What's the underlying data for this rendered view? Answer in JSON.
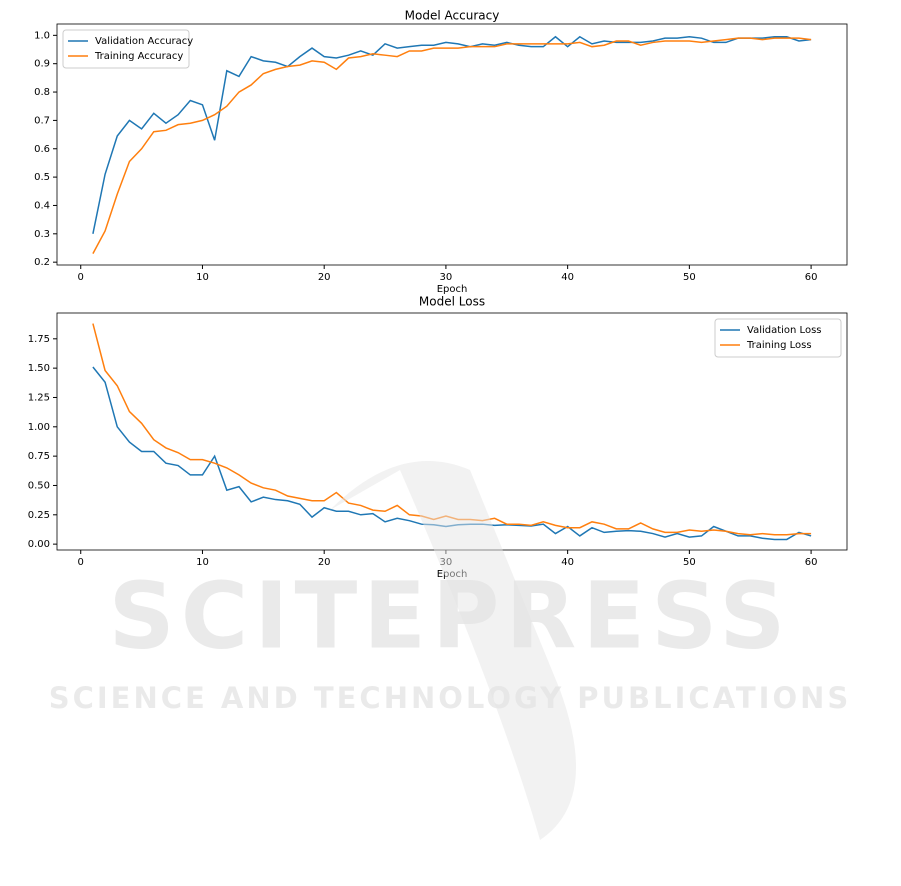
{
  "chart_data": [
    {
      "type": "line",
      "title": "Model Accuracy",
      "x_label": "Epoch",
      "x": [
        1,
        2,
        3,
        4,
        5,
        6,
        7,
        8,
        9,
        10,
        11,
        12,
        13,
        14,
        15,
        16,
        17,
        18,
        19,
        20,
        21,
        22,
        23,
        24,
        25,
        26,
        27,
        28,
        29,
        30,
        31,
        32,
        33,
        34,
        35,
        36,
        37,
        38,
        39,
        40,
        41,
        42,
        43,
        44,
        45,
        46,
        47,
        48,
        49,
        50,
        51,
        52,
        53,
        54,
        55,
        56,
        57,
        58,
        59,
        60
      ],
      "series": [
        {
          "name": "Validation Accuracy",
          "color": "#1f77b4",
          "values": [
            0.3,
            0.51,
            0.645,
            0.7,
            0.67,
            0.725,
            0.69,
            0.72,
            0.77,
            0.755,
            0.63,
            0.875,
            0.855,
            0.925,
            0.91,
            0.905,
            0.89,
            0.925,
            0.955,
            0.925,
            0.92,
            0.93,
            0.945,
            0.93,
            0.97,
            0.955,
            0.96,
            0.965,
            0.965,
            0.975,
            0.97,
            0.96,
            0.97,
            0.965,
            0.975,
            0.965,
            0.96,
            0.96,
            0.995,
            0.96,
            0.995,
            0.97,
            0.98,
            0.975,
            0.975,
            0.975,
            0.98,
            0.99,
            0.99,
            0.995,
            0.99,
            0.975,
            0.975,
            0.99,
            0.99,
            0.99,
            0.995,
            0.995,
            0.98,
            0.985
          ]
        },
        {
          "name": "Training Accuracy",
          "color": "#ff7f0e",
          "values": [
            0.23,
            0.31,
            0.44,
            0.555,
            0.6,
            0.66,
            0.665,
            0.685,
            0.69,
            0.7,
            0.72,
            0.75,
            0.8,
            0.825,
            0.865,
            0.88,
            0.89,
            0.895,
            0.91,
            0.905,
            0.88,
            0.92,
            0.925,
            0.935,
            0.93,
            0.925,
            0.945,
            0.945,
            0.955,
            0.955,
            0.955,
            0.96,
            0.96,
            0.96,
            0.97,
            0.97,
            0.97,
            0.97,
            0.97,
            0.97,
            0.975,
            0.96,
            0.965,
            0.98,
            0.98,
            0.965,
            0.975,
            0.98,
            0.98,
            0.98,
            0.975,
            0.98,
            0.985,
            0.99,
            0.99,
            0.985,
            0.99,
            0.99,
            0.99,
            0.985
          ]
        }
      ],
      "xlim": [
        -1.95,
        62.95
      ],
      "xticks": [
        0,
        10,
        20,
        30,
        40,
        50,
        60
      ],
      "ylim": [
        0.19,
        1.04
      ],
      "yticks": [
        0.2,
        0.3,
        0.4,
        0.5,
        0.6,
        0.7,
        0.8,
        0.9,
        {
          "value": 1,
          "label": "1.0"
        }
      ],
      "grid": false,
      "legend": "upper-left"
    },
    {
      "type": "line",
      "title": "Model Loss",
      "x_label": "Epoch",
      "x": [
        1,
        2,
        3,
        4,
        5,
        6,
        7,
        8,
        9,
        10,
        11,
        12,
        13,
        14,
        15,
        16,
        17,
        18,
        19,
        20,
        21,
        22,
        23,
        24,
        25,
        26,
        27,
        28,
        29,
        30,
        31,
        32,
        33,
        34,
        35,
        36,
        37,
        38,
        39,
        40,
        41,
        42,
        43,
        44,
        45,
        46,
        47,
        48,
        49,
        50,
        51,
        52,
        53,
        54,
        55,
        56,
        57,
        58,
        59,
        60
      ],
      "series": [
        {
          "name": "Validation Loss",
          "color": "#1f77b4",
          "values": [
            1.51,
            1.38,
            1.0,
            0.87,
            0.79,
            0.79,
            0.69,
            0.67,
            0.59,
            0.59,
            0.75,
            0.46,
            0.49,
            0.36,
            0.4,
            0.38,
            0.37,
            0.34,
            0.23,
            0.31,
            0.28,
            0.28,
            0.25,
            0.26,
            0.19,
            0.22,
            0.2,
            0.17,
            0.165,
            0.15,
            0.165,
            0.17,
            0.17,
            0.16,
            0.165,
            0.16,
            0.155,
            0.17,
            0.09,
            0.15,
            0.07,
            0.14,
            0.1,
            0.11,
            0.115,
            0.11,
            0.09,
            0.06,
            0.09,
            0.06,
            0.07,
            0.15,
            0.11,
            0.07,
            0.07,
            0.05,
            0.04,
            0.04,
            0.1,
            0.07
          ]
        },
        {
          "name": "Training Loss",
          "color": "#ff7f0e",
          "values": [
            1.88,
            1.48,
            1.35,
            1.13,
            1.03,
            0.89,
            0.82,
            0.78,
            0.72,
            0.72,
            0.69,
            0.65,
            0.59,
            0.52,
            0.48,
            0.46,
            0.41,
            0.39,
            0.37,
            0.37,
            0.44,
            0.35,
            0.33,
            0.29,
            0.28,
            0.33,
            0.25,
            0.24,
            0.21,
            0.24,
            0.21,
            0.21,
            0.2,
            0.22,
            0.17,
            0.17,
            0.16,
            0.19,
            0.16,
            0.14,
            0.14,
            0.19,
            0.17,
            0.13,
            0.13,
            0.18,
            0.13,
            0.1,
            0.1,
            0.12,
            0.11,
            0.12,
            0.11,
            0.09,
            0.08,
            0.09,
            0.08,
            0.08,
            0.09,
            0.09
          ]
        }
      ],
      "xlim": [
        -1.95,
        62.95
      ],
      "xticks": [
        0,
        10,
        20,
        30,
        40,
        50,
        60
      ],
      "ylim": [
        -0.05,
        1.97
      ],
      "yticks": [
        {
          "value": 0,
          "label": "0.00"
        },
        0.25,
        {
          "value": 0.5,
          "label": "0.50"
        },
        0.75,
        {
          "value": 1,
          "label": "1.00"
        },
        1.25,
        {
          "value": 1.5,
          "label": "1.50"
        },
        1.75
      ],
      "grid": false,
      "legend": "upper-right"
    }
  ],
  "watermark": {
    "title": "SCITEPRESS",
    "subtitle": "SCIENCE AND TECHNOLOGY PUBLICATIONS"
  }
}
